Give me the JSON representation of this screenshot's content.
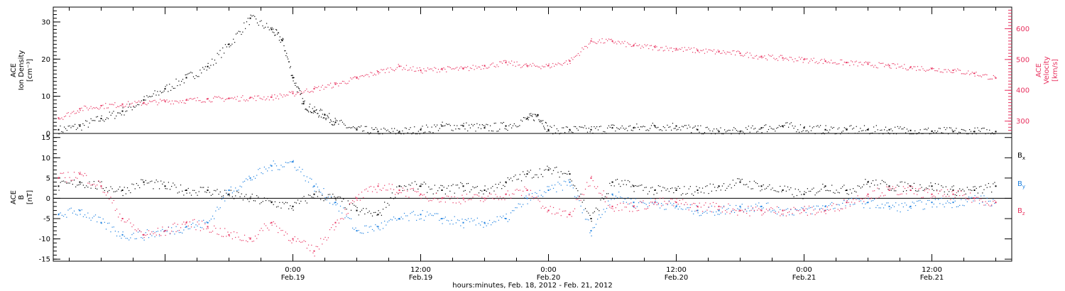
{
  "colors": {
    "black": "#000000",
    "pink": "#e8305e",
    "blue": "#1a7fe0"
  },
  "chart_data": [
    {
      "type": "scatter",
      "panel": "top",
      "ylabel_lines": [
        "ACE",
        "Ion Density",
        "[cm⁻³]"
      ],
      "ylim": [
        0,
        34
      ],
      "yticks": [
        0,
        10,
        20,
        30
      ],
      "y2label_lines": [
        "ACE",
        "Velocity",
        "[km/s]"
      ],
      "y2lim": [
        260,
        670
      ],
      "y2ticks": [
        300,
        400,
        500,
        600
      ],
      "xlim_hours": [
        -22.5,
        67.5
      ],
      "series": [
        {
          "axis": "left",
          "color": "#000000",
          "x": [
            -22,
            -20,
            -18,
            -16,
            -14,
            -12,
            -10,
            -8,
            -6,
            -4,
            -2,
            -1,
            0,
            1,
            2,
            3,
            4,
            6,
            8,
            10,
            12,
            14,
            16,
            18,
            20,
            22,
            23,
            24,
            26,
            28,
            30,
            32,
            34,
            36,
            38,
            40,
            42,
            44,
            46,
            48,
            50,
            52,
            54,
            56,
            58,
            60,
            62,
            64,
            66
          ],
          "y": [
            1,
            2,
            4,
            6,
            9,
            12,
            15,
            18,
            24,
            31,
            28,
            25,
            15,
            8,
            6,
            5,
            3,
            1,
            0.5,
            0.5,
            1,
            2,
            2,
            1.5,
            2,
            4,
            5,
            1,
            1,
            1,
            1.5,
            1.5,
            2,
            2,
            1,
            0.5,
            0.5,
            1.5,
            2,
            1.5,
            1,
            1,
            1,
            1,
            0.8,
            0.6,
            0.5,
            0.5,
            0.5
          ]
        },
        {
          "name": "Velocity",
          "axis": "right",
          "color": "#e8305e",
          "x": [
            -22,
            -20,
            -18,
            -16,
            -14,
            -12,
            -10,
            -8,
            -6,
            -4,
            -2,
            0,
            2,
            4,
            6,
            8,
            10,
            12,
            14,
            16,
            18,
            20,
            22,
            24,
            26,
            28,
            30,
            32,
            34,
            36,
            38,
            40,
            42,
            44,
            46,
            48,
            50,
            52,
            54,
            56,
            58,
            60,
            62,
            64,
            66
          ],
          "y": [
            310,
            340,
            350,
            355,
            360,
            365,
            368,
            372,
            374,
            376,
            378,
            390,
            405,
            420,
            440,
            460,
            478,
            465,
            470,
            470,
            480,
            490,
            480,
            480,
            495,
            560,
            560,
            545,
            540,
            535,
            530,
            525,
            520,
            510,
            505,
            500,
            495,
            490,
            485,
            480,
            475,
            470,
            465,
            455,
            440
          ]
        }
      ]
    },
    {
      "type": "scatter",
      "panel": "bottom",
      "ylabel_lines": [
        "ACE",
        "B",
        "[nT]"
      ],
      "ylim": [
        -15.5,
        16
      ],
      "yticks": [
        -15,
        -10,
        -5,
        0,
        5,
        10,
        15
      ],
      "xlim_hours": [
        -22.5,
        67.5
      ],
      "xticks": [
        {
          "hour": 0,
          "time": "0:00",
          "date": "Feb.19"
        },
        {
          "hour": 12,
          "time": "12:00",
          "date": "Feb.19"
        },
        {
          "hour": 24,
          "time": "0:00",
          "date": "Feb.20"
        },
        {
          "hour": 36,
          "time": "12:00",
          "date": "Feb.20"
        },
        {
          "hour": 48,
          "time": "0:00",
          "date": "Feb.21"
        },
        {
          "hour": 60,
          "time": "12:00",
          "date": "Feb.21"
        }
      ],
      "xlabel": "hours:minutes, Feb. 18, 2012 - Feb. 21, 2012",
      "series": [
        {
          "name": "Bx",
          "color": "#000000",
          "x": [
            -22,
            -20,
            -18,
            -16,
            -14,
            -12,
            -10,
            -8,
            -6,
            -4,
            -2,
            0,
            2,
            4,
            6,
            8,
            10,
            12,
            14,
            16,
            18,
            20,
            22,
            24,
            26,
            28,
            30,
            32,
            34,
            36,
            38,
            40,
            42,
            44,
            46,
            48,
            50,
            52,
            54,
            56,
            58,
            60,
            62,
            64,
            66
          ],
          "y": [
            3,
            4,
            3,
            2,
            4,
            3,
            2,
            2,
            1,
            0,
            -1,
            -2,
            1,
            0,
            -3,
            -4,
            3,
            3,
            2,
            3,
            2,
            4,
            6,
            7,
            6,
            -5,
            4,
            3,
            2,
            2,
            2,
            3,
            4,
            3,
            2,
            1,
            3,
            2,
            4,
            3,
            3,
            3,
            2,
            2,
            3
          ]
        },
        {
          "name": "By",
          "color": "#1a7fe0",
          "x": [
            -22,
            -20,
            -18,
            -16,
            -14,
            -12,
            -10,
            -8,
            -6,
            -4,
            -2,
            0,
            2,
            4,
            6,
            8,
            10,
            12,
            14,
            16,
            18,
            20,
            22,
            24,
            26,
            28,
            30,
            32,
            34,
            36,
            38,
            40,
            42,
            44,
            46,
            48,
            50,
            52,
            54,
            56,
            58,
            60,
            62,
            64,
            66
          ],
          "y": [
            -4,
            -3,
            -6,
            -9,
            -9,
            -8,
            -7,
            -6,
            2,
            5,
            8,
            9,
            3,
            -1,
            -8,
            -7,
            -5,
            -4,
            -5,
            -6,
            -6,
            -5,
            0,
            2,
            4,
            -8,
            1,
            -1,
            -1,
            -2,
            -3,
            -3,
            -2,
            -2,
            -3,
            -3,
            -2,
            -1,
            -1,
            -2,
            -2,
            -1,
            -1,
            0,
            -1
          ]
        },
        {
          "name": "Bz",
          "color": "#e8305e",
          "x": [
            -22,
            -20,
            -18,
            -16,
            -14,
            -12,
            -10,
            -8,
            -6,
            -4,
            -2,
            0,
            2,
            4,
            6,
            8,
            10,
            12,
            14,
            16,
            18,
            20,
            22,
            24,
            26,
            28,
            30,
            32,
            34,
            36,
            38,
            40,
            42,
            44,
            46,
            48,
            50,
            52,
            54,
            56,
            58,
            60,
            62,
            64,
            66
          ],
          "y": [
            5,
            6,
            3,
            -5,
            -9,
            -8,
            -6,
            -7,
            -9,
            -10,
            -6,
            -10,
            -13,
            -6,
            0,
            3,
            2,
            1,
            0,
            0,
            0,
            1,
            2,
            -3,
            -4,
            5,
            -2,
            -2,
            -1,
            -1,
            -2,
            -2,
            -3,
            -3,
            -3,
            -3,
            -3,
            -1,
            1,
            2,
            2,
            1,
            1,
            0,
            -1
          ]
        }
      ]
    }
  ],
  "legend": {
    "bx_base": "B",
    "bx_sub": "x",
    "by_base": "B",
    "by_sub": "y",
    "bz_base": "B",
    "bz_sub": "z"
  }
}
